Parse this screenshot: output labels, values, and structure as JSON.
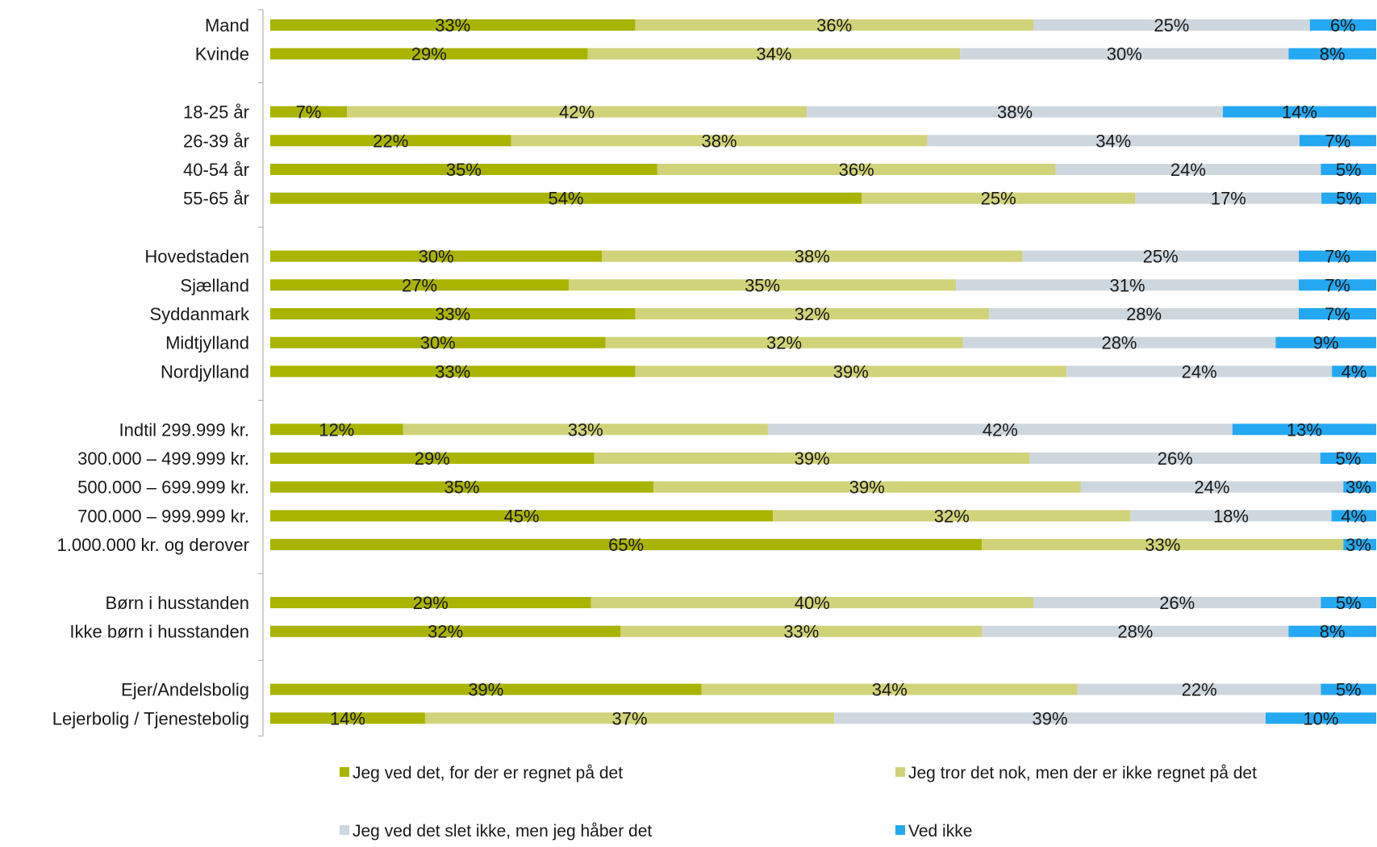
{
  "chart_data": {
    "type": "bar",
    "orientation": "horizontal",
    "stacked": "percent",
    "categories": [
      "Mand",
      "Kvinde",
      "18-25 år",
      "26-39 år",
      "40-54 år",
      "55-65 år",
      "Hovedstaden",
      "Sjælland",
      "Syddanmark",
      "Midtjylland",
      "Nordjylland",
      "Indtil 299.999 kr.",
      "300.000 – 499.999 kr.",
      "500.000 – 699.999 kr.",
      "700.000 – 999.999 kr.",
      "1.000.000 kr. og derover",
      "Børn i husstanden",
      "Ikke børn i husstanden",
      "Ejer/Andelsbolig",
      "Lejerbolig / Tjenestebolig"
    ],
    "groups": [
      2,
      4,
      5,
      5,
      2,
      2
    ],
    "series": [
      {
        "name": "Jeg ved det, for der er regnet på det",
        "color": "#a9b400",
        "values": [
          33,
          29,
          7,
          22,
          35,
          54,
          30,
          27,
          33,
          30,
          33,
          12,
          29,
          35,
          45,
          65,
          29,
          32,
          39,
          14
        ]
      },
      {
        "name": "Jeg tror det nok, men der er ikke regnet på det",
        "color": "#d1d37a",
        "values": [
          36,
          34,
          42,
          38,
          36,
          25,
          38,
          35,
          32,
          32,
          39,
          33,
          39,
          39,
          32,
          33,
          40,
          33,
          34,
          37
        ]
      },
      {
        "name": "Jeg ved det slet ikke, men jeg håber det",
        "color": "#cfd7de",
        "values": [
          25,
          30,
          38,
          34,
          24,
          17,
          25,
          31,
          28,
          28,
          24,
          42,
          26,
          24,
          18,
          0,
          26,
          28,
          22,
          39
        ]
      },
      {
        "name": "Ved ikke",
        "color": "#24a8f1",
        "values": [
          6,
          8,
          14,
          7,
          5,
          5,
          7,
          7,
          7,
          9,
          4,
          13,
          5,
          3,
          4,
          3,
          5,
          8,
          5,
          10
        ]
      }
    ],
    "data_labels": [
      [
        "33%",
        "36%",
        "25%",
        "6%"
      ],
      [
        "29%",
        "34%",
        "30%",
        "8%"
      ],
      [
        "7%",
        "42%",
        "38%",
        "14%"
      ],
      [
        "22%",
        "38%",
        "34%",
        "7%"
      ],
      [
        "35%",
        "36%",
        "24%",
        "5%"
      ],
      [
        "54%",
        "25%",
        "17%",
        "5%"
      ],
      [
        "30%",
        "38%",
        "25%",
        "7%"
      ],
      [
        "27%",
        "35%",
        "31%",
        "7%"
      ],
      [
        "33%",
        "32%",
        "28%",
        "7%"
      ],
      [
        "30%",
        "32%",
        "28%",
        "9%"
      ],
      [
        "33%",
        "39%",
        "24%",
        "4%"
      ],
      [
        "12%",
        "33%",
        "42%",
        "13%"
      ],
      [
        "29%",
        "39%",
        "26%",
        "5%"
      ],
      [
        "35%",
        "39%",
        "24%",
        "3%"
      ],
      [
        "45%",
        "32%",
        "18%",
        "4%"
      ],
      [
        "65%",
        "33%",
        "",
        "3%"
      ],
      [
        "29%",
        "40%",
        "26%",
        "5%"
      ],
      [
        "32%",
        "33%",
        "28%",
        "8%"
      ],
      [
        "39%",
        "34%",
        "22%",
        "5%"
      ],
      [
        "14%",
        "37%",
        "39%",
        "10%"
      ]
    ],
    "title": "",
    "xlabel": "",
    "ylabel": "",
    "xlim": [
      0,
      100
    ],
    "grid": false,
    "legend_position": "bottom"
  }
}
